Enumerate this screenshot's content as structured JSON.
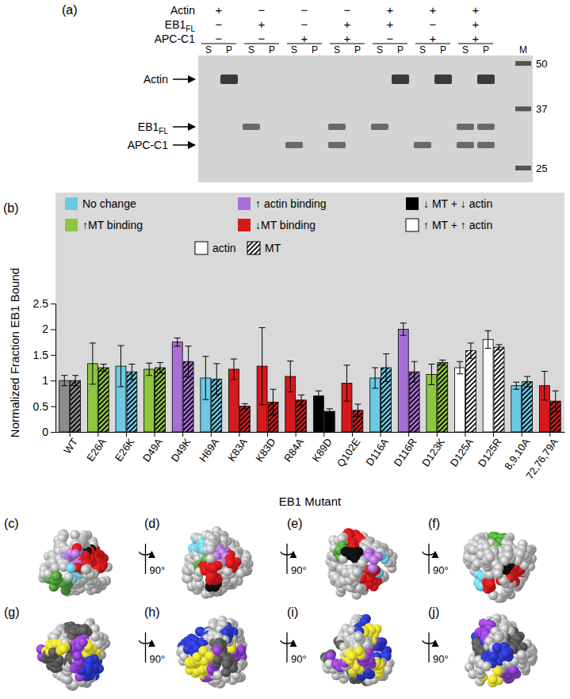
{
  "chart_data": {
    "type": "bar",
    "panel_label": "(b)",
    "y_label": "Normalized Fraction EB1 Bound",
    "x_label": "EB1 Mutant",
    "categories": [
      "WT",
      "E26A",
      "E26K",
      "D49A",
      "D49K",
      "H69A",
      "K83A",
      "K83D",
      "R84A",
      "K89D",
      "Q102E",
      "D116A",
      "D116R",
      "D123K",
      "D125A",
      "D125R",
      "8,9,10A",
      "72,76,79A"
    ],
    "series": [
      {
        "name": "actin",
        "colors": [
          "#8c8c8c",
          "#8dc63f",
          "#6cc9e3",
          "#8dc63f",
          "#a86fd6",
          "#6cc9e3",
          "#d7191c",
          "#d7191c",
          "#d7191c",
          "#000000",
          "#d7191c",
          "#6cc9e3",
          "#a86fd6",
          "#8dc63f",
          "#ffffff",
          "#ffffff",
          "#6cc9e3",
          "#d7191c"
        ],
        "values": [
          1.0,
          1.33,
          1.28,
          1.22,
          1.75,
          1.05,
          1.22,
          1.28,
          1.08,
          0.7,
          0.95,
          1.05,
          2.0,
          1.12,
          1.25,
          1.8,
          0.9,
          0.9
        ],
        "errors": [
          0.1,
          0.4,
          0.4,
          0.12,
          0.08,
          0.42,
          0.2,
          0.75,
          0.3,
          0.1,
          0.35,
          0.2,
          0.12,
          0.2,
          0.12,
          0.17,
          0.07,
          0.28
        ]
      },
      {
        "name": "MT",
        "colors": [
          "#8c8c8c",
          "#8dc63f",
          "#6cc9e3",
          "#8dc63f",
          "#a86fd6",
          "#6cc9e3",
          "#d7191c",
          "#d7191c",
          "#d7191c",
          "#000000",
          "#d7191c",
          "#6cc9e3",
          "#a86fd6",
          "#8dc63f",
          "#ffffff",
          "#ffffff",
          "#6cc9e3",
          "#d7191c"
        ],
        "values": [
          1.0,
          1.25,
          1.17,
          1.25,
          1.37,
          1.03,
          0.5,
          0.58,
          0.62,
          0.4,
          0.42,
          1.25,
          1.17,
          1.35,
          1.58,
          1.65,
          0.98,
          0.6
        ],
        "errors": [
          0.1,
          0.07,
          0.15,
          0.1,
          0.3,
          0.3,
          0.05,
          0.25,
          0.1,
          0.05,
          0.12,
          0.27,
          0.2,
          0.05,
          0.15,
          0.05,
          0.1,
          0.2
        ]
      }
    ],
    "annotations": [
      {
        "text": "No change",
        "color": "#6cc9e3"
      },
      {
        "text": "↑MT binding",
        "color": "#8dc63f"
      },
      {
        "text": "↑ actin binding",
        "color": "#a86fd6"
      },
      {
        "text": "↓MT binding",
        "color": "#d7191c"
      },
      {
        "text": "↓ MT + ↓ actin",
        "color": "#000000"
      },
      {
        "text": "↑ MT + ↑ actin",
        "color": "#ffffff"
      }
    ],
    "ylim": [
      0,
      2.5
    ],
    "yticks": [
      0,
      0.5,
      1,
      1.5,
      2,
      2.5
    ],
    "grid": false
  },
  "gel": {
    "panel_label": "(a)",
    "rows": [
      {
        "label": "Actin",
        "signs": [
          "+",
          "−",
          "−",
          "−",
          "+",
          "+",
          "+"
        ]
      },
      {
        "label": "EB1",
        "sub": "FL",
        "signs": [
          "−",
          "+",
          "−",
          "+",
          "+",
          "−",
          "+"
        ]
      },
      {
        "label": "APC-C1",
        "signs": [
          "−",
          "−",
          "+",
          "+",
          "−",
          "+",
          "+"
        ]
      }
    ],
    "lanes": [
      "S",
      "P"
    ],
    "marker_lane": "M",
    "mw": [
      50,
      37,
      25
    ],
    "proteins": [
      {
        "label": "Actin"
      },
      {
        "label": "EB1",
        "sub": "FL"
      },
      {
        "label": "APC-C1"
      }
    ],
    "groups": [
      {
        "S": [],
        "P": [
          "Actin"
        ]
      },
      {
        "S": [
          "EB1"
        ],
        "P": []
      },
      {
        "S": [
          "APC-C1"
        ],
        "P": []
      },
      {
        "S": [
          "EB1",
          "APC-C1"
        ],
        "P": []
      },
      {
        "S": [
          "EB1"
        ],
        "P": [
          "Actin"
        ]
      },
      {
        "S": [
          "APC-C1"
        ],
        "P": [
          "Actin"
        ]
      },
      {
        "S": [
          "EB1",
          "APC-C1"
        ],
        "P": [
          "Actin",
          "EB1",
          "APC-C1"
        ]
      }
    ]
  },
  "structures": {
    "panels": [
      "(c)",
      "(d)",
      "(e)",
      "(f)",
      "(g)",
      "(h)",
      "(i)",
      "(j)"
    ],
    "rotation": "90°"
  }
}
